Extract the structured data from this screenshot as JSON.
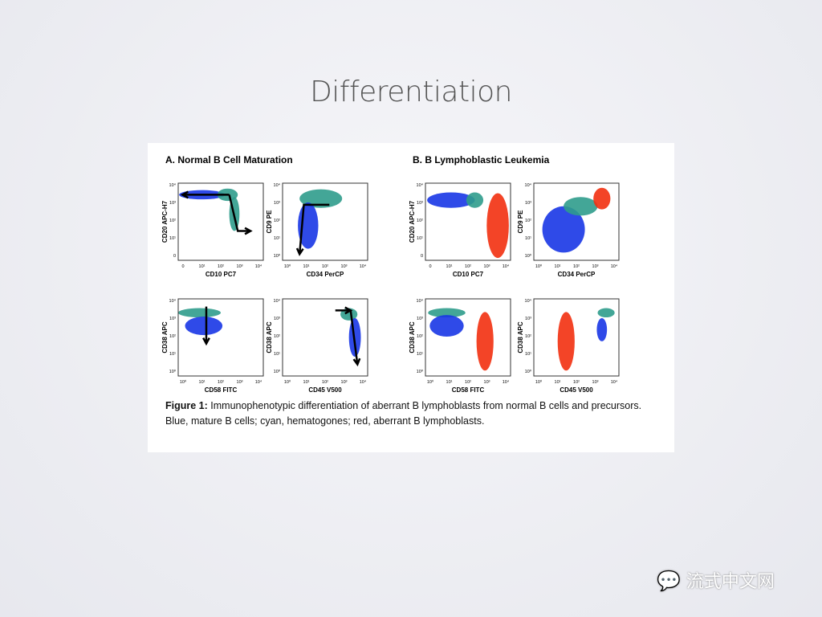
{
  "slide": {
    "title": "Differentiation"
  },
  "figure": {
    "panels": [
      {
        "title": "A. Normal B Cell Maturation",
        "plots": [
          {
            "x_label": "CD10 PC7",
            "y_label": "CD20 APC-H7",
            "x_ticks": [
              "0",
              "10¹",
              "10²",
              "10³",
              "10⁴"
            ],
            "y_ticks": [
              "0",
              "10¹",
              "10²",
              "10³",
              "10⁴"
            ]
          },
          {
            "x_label": "CD34 PerCP",
            "y_label": "CD9 PE",
            "x_ticks": [
              "10⁰",
              "10¹",
              "10²",
              "10³",
              "10⁴"
            ],
            "y_ticks": [
              "10⁰",
              "10¹",
              "10²",
              "10³",
              "10⁴"
            ]
          },
          {
            "x_label": "CD58 FITC",
            "y_label": "CD38 APC",
            "x_ticks": [
              "10⁰",
              "10¹",
              "10²",
              "10³",
              "10⁴"
            ],
            "y_ticks": [
              "10⁰",
              "10¹",
              "10²",
              "10³",
              "10⁴"
            ]
          },
          {
            "x_label": "CD45 V500",
            "y_label": "CD38 APC",
            "x_ticks": [
              "10⁰",
              "10¹",
              "10²",
              "10³",
              "10⁴"
            ],
            "y_ticks": [
              "10⁰",
              "10¹",
              "10²",
              "10³",
              "10⁴"
            ]
          }
        ]
      },
      {
        "title": "B. B Lymphoblastic Leukemia",
        "plots": [
          {
            "x_label": "CD10 PC7",
            "y_label": "CD20 APC-H7",
            "x_ticks": [
              "0",
              "10¹",
              "10²",
              "10³",
              "10⁴"
            ],
            "y_ticks": [
              "0",
              "10¹",
              "10²",
              "10³",
              "10⁴"
            ]
          },
          {
            "x_label": "CD34 PerCP",
            "y_label": "CD9 PE",
            "x_ticks": [
              "10⁰",
              "10¹",
              "10²",
              "10³",
              "10⁴"
            ],
            "y_ticks": [
              "10⁰",
              "10¹",
              "10²",
              "10³",
              "10⁴"
            ]
          },
          {
            "x_label": "CD58 FITC",
            "y_label": "CD38 APC",
            "x_ticks": [
              "10⁰",
              "10¹",
              "10²",
              "10³",
              "10⁴"
            ],
            "y_ticks": [
              "10⁰",
              "10¹",
              "10²",
              "10³",
              "10⁴"
            ]
          },
          {
            "x_label": "CD45 V500",
            "y_label": "CD38 APC",
            "x_ticks": [
              "10⁰",
              "10¹",
              "10²",
              "10³",
              "10⁴"
            ],
            "y_ticks": [
              "10⁰",
              "10¹",
              "10²",
              "10³",
              "10⁴"
            ]
          }
        ]
      }
    ],
    "caption_label": "Figure 1:",
    "caption": "Immunophenotypic differentiation of aberrant B lymphoblasts from normal B cells and precursors. Blue, mature B cells; cyan, hematogones; red, aberrant B lymphoblasts."
  },
  "watermark": "流式中文网"
}
